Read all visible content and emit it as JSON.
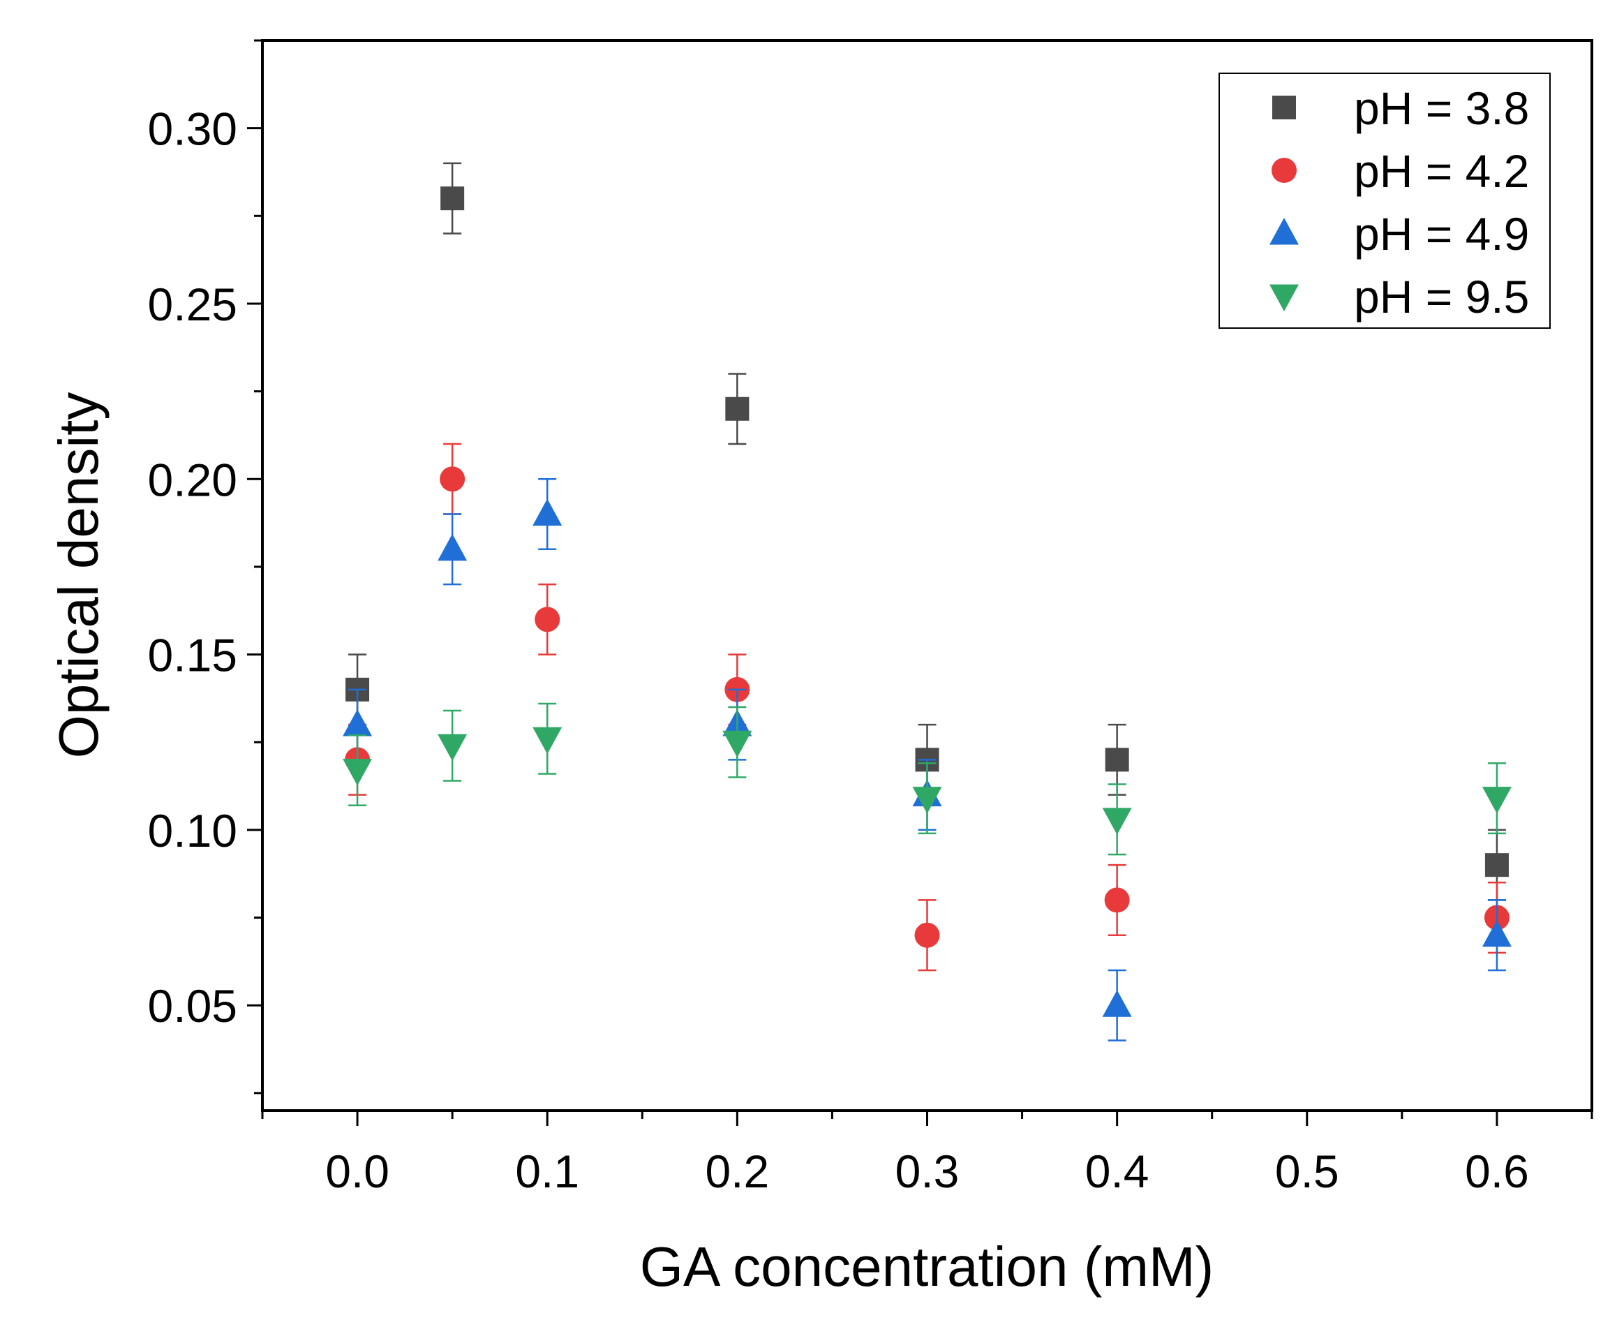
{
  "chart_data": {
    "type": "scatter",
    "title": "",
    "xlabel": "GA concentration (mM)",
    "ylabel": "Optical density",
    "xlim": [
      -0.05,
      0.65
    ],
    "ylim": [
      0.02,
      0.325
    ],
    "x_ticks": [
      0.0,
      0.1,
      0.2,
      0.3,
      0.4,
      0.5,
      0.6
    ],
    "x_tick_labels": [
      "0.0",
      "0.1",
      "0.2",
      "0.3",
      "0.4",
      "0.5",
      "0.6"
    ],
    "y_ticks": [
      0.05,
      0.1,
      0.15,
      0.2,
      0.25,
      0.3
    ],
    "y_tick_labels": [
      "0.05",
      "0.10",
      "0.15",
      "0.20",
      "0.25",
      "0.30"
    ],
    "grid": false,
    "legend_position": "top-right",
    "series": [
      {
        "name": "pH = 3.8",
        "marker": "square",
        "color": "#4a4a4a",
        "x": [
          0.0,
          0.05,
          0.2,
          0.3,
          0.4,
          0.6
        ],
        "y": [
          0.14,
          0.28,
          0.22,
          0.12,
          0.12,
          0.09
        ],
        "error": [
          0.01,
          0.01,
          0.01,
          0.01,
          0.01,
          0.01
        ]
      },
      {
        "name": "pH = 4.2",
        "marker": "circle",
        "color": "#e83a3a",
        "x": [
          0.0,
          0.05,
          0.1,
          0.2,
          0.3,
          0.4,
          0.6
        ],
        "y": [
          0.12,
          0.2,
          0.16,
          0.14,
          0.07,
          0.08,
          0.075
        ],
        "error": [
          0.01,
          0.01,
          0.01,
          0.01,
          0.01,
          0.01,
          0.01
        ]
      },
      {
        "name": "pH = 4.9",
        "marker": "triangle-up",
        "color": "#1f6fd6",
        "x": [
          0.0,
          0.05,
          0.1,
          0.2,
          0.3,
          0.4,
          0.6
        ],
        "y": [
          0.13,
          0.18,
          0.19,
          0.13,
          0.11,
          0.05,
          0.07
        ],
        "error": [
          0.01,
          0.01,
          0.01,
          0.01,
          0.01,
          0.01,
          0.01
        ]
      },
      {
        "name": "pH = 9.5",
        "marker": "triangle-down",
        "color": "#2fa866",
        "x": [
          0.0,
          0.05,
          0.1,
          0.2,
          0.3,
          0.4,
          0.6
        ],
        "y": [
          0.117,
          0.124,
          0.126,
          0.125,
          0.109,
          0.103,
          0.109
        ],
        "error": [
          0.01,
          0.01,
          0.01,
          0.01,
          0.01,
          0.01,
          0.01
        ]
      }
    ]
  }
}
